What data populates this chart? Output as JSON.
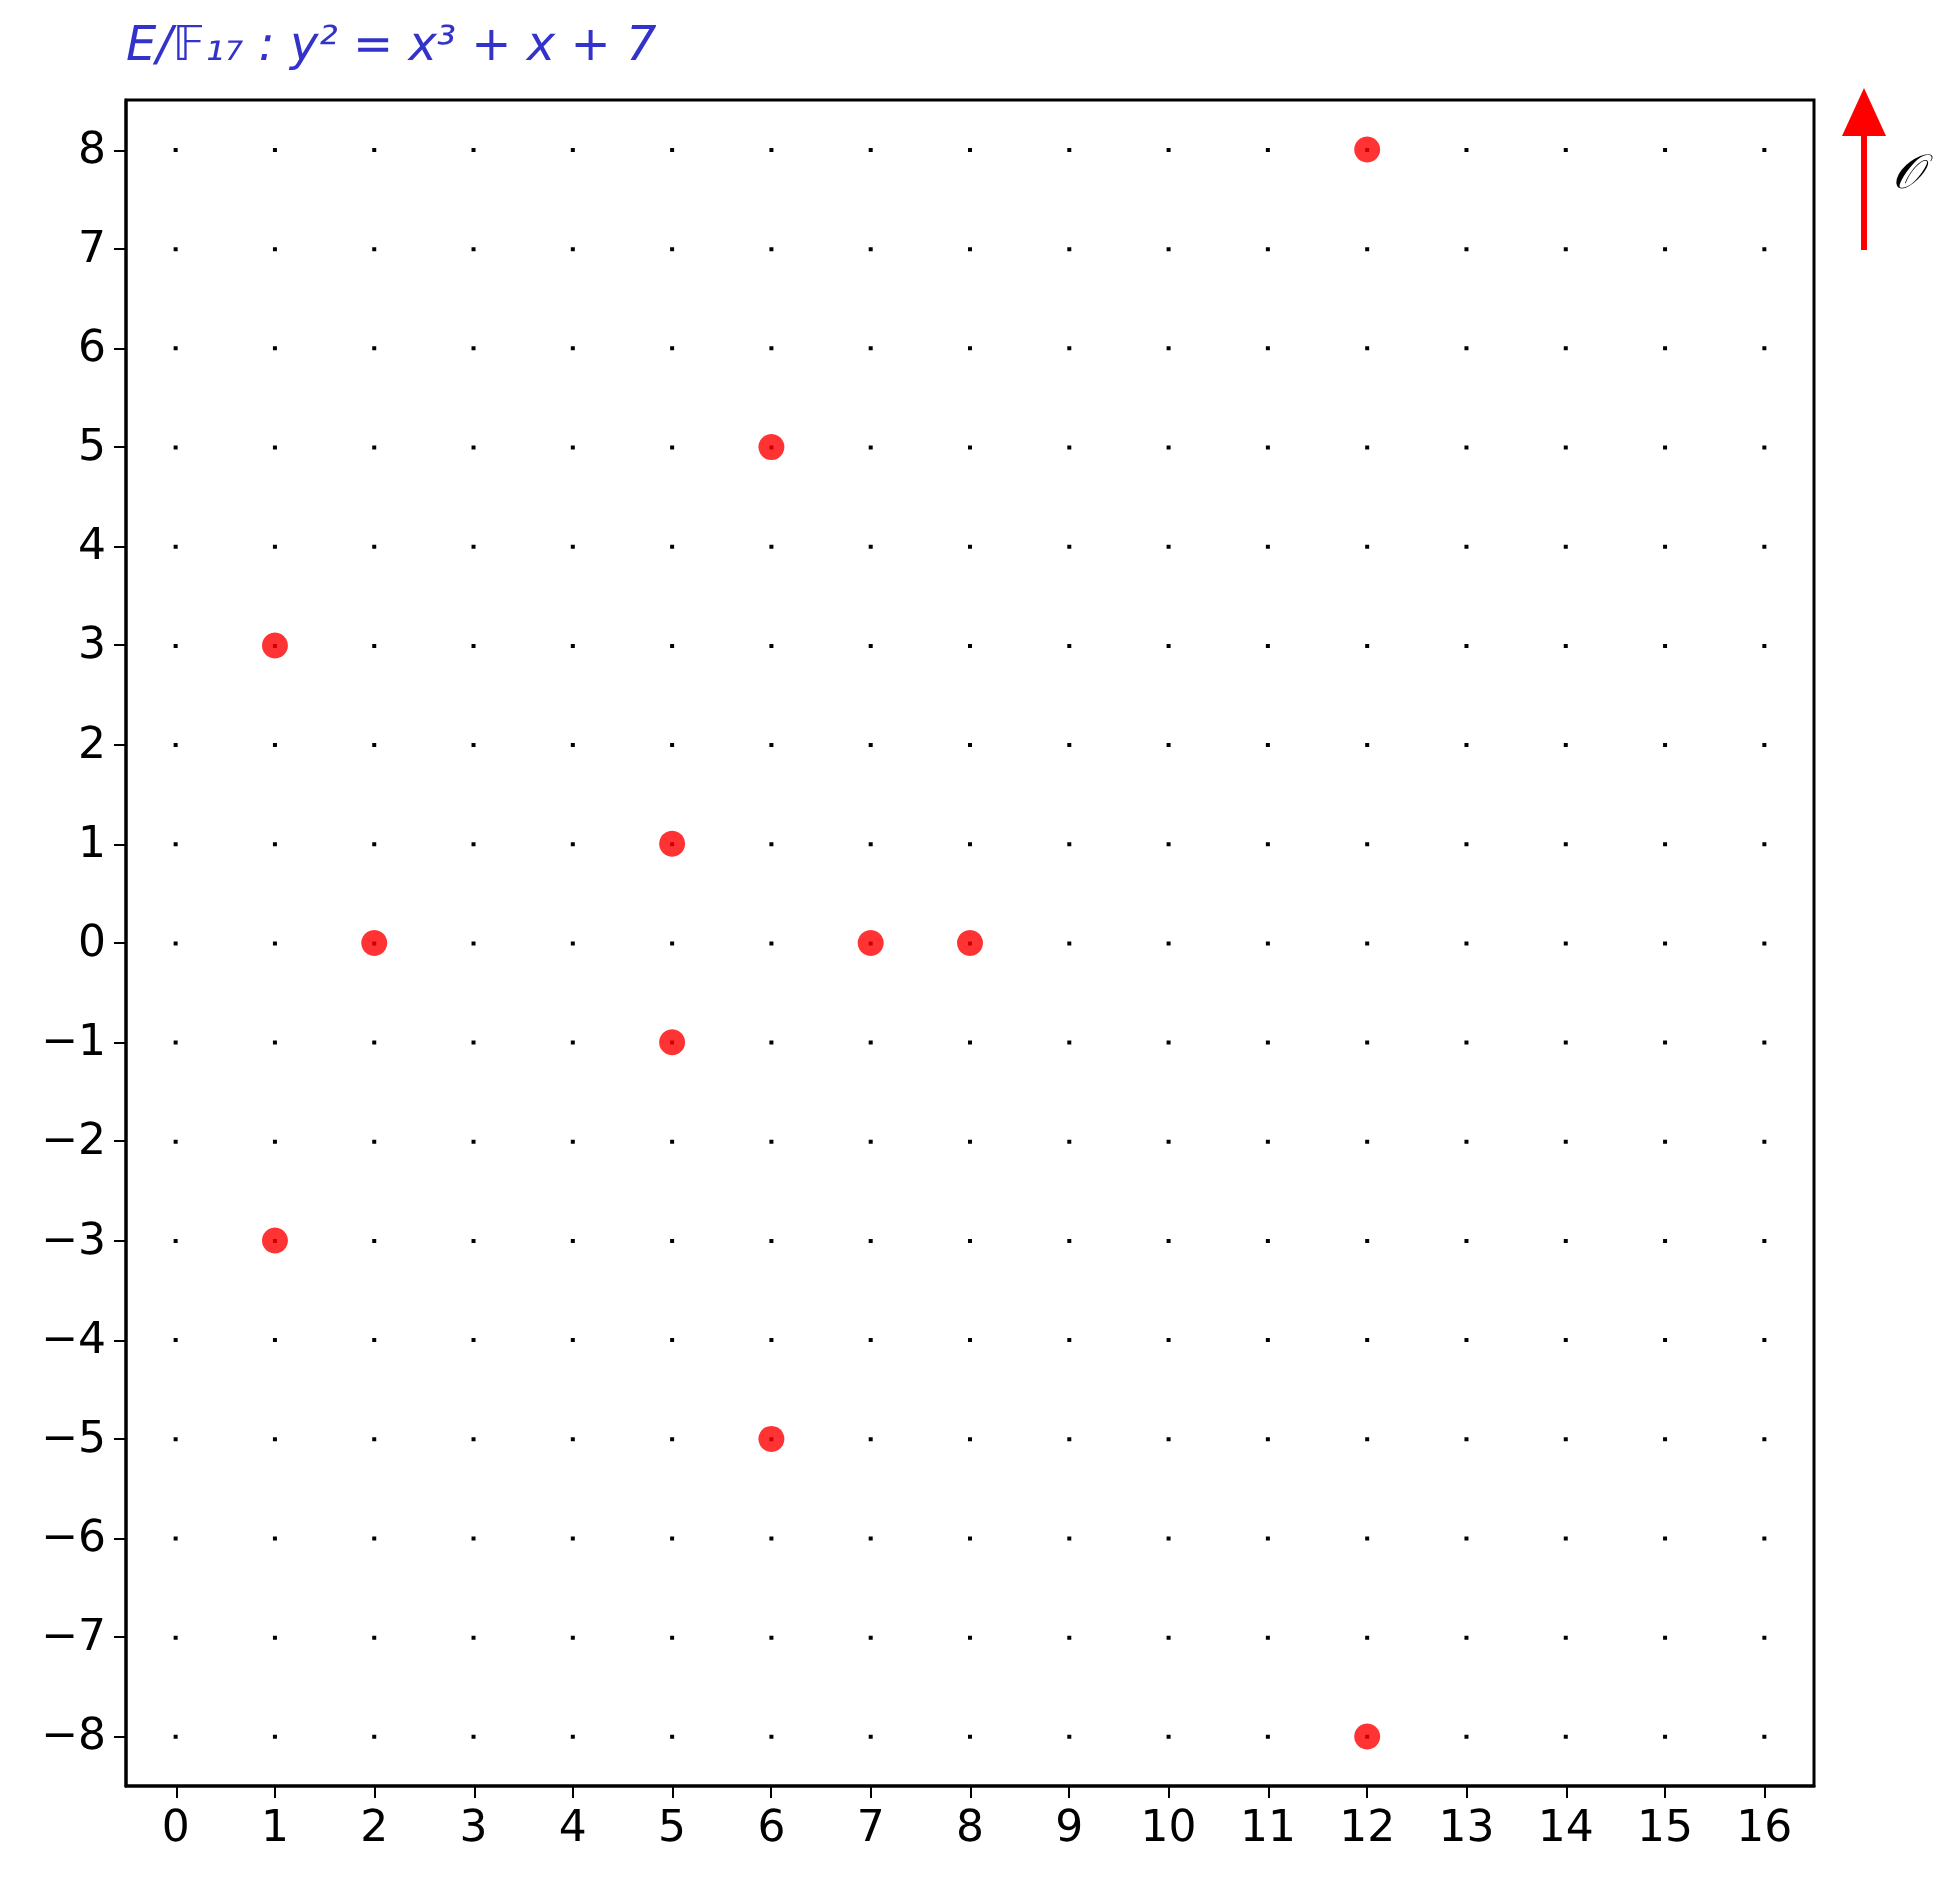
{
  "chart_data": {
    "type": "scatter",
    "title": "E/𝔽₁₇ : y² = x³ + x + 7",
    "series": [
      {
        "color": "#ff0000",
        "x": [
          1,
          1,
          2,
          5,
          5,
          6,
          6,
          7,
          8,
          12,
          12
        ],
        "values": [
          3,
          -3,
          0,
          1,
          -1,
          5,
          -5,
          0,
          0,
          8,
          -8
        ]
      }
    ],
    "xlim": [
      -0.5,
      16.5
    ],
    "xticks": [
      0,
      1,
      2,
      3,
      4,
      5,
      6,
      7,
      8,
      9,
      10,
      11,
      12,
      13,
      14,
      15,
      16
    ],
    "ylim": [
      -8.5,
      8.5
    ],
    "yticks": [
      {
        "value": -8,
        "label": "−8"
      },
      {
        "value": -7,
        "label": "−7"
      },
      {
        "value": -6,
        "label": "−6"
      },
      {
        "value": -5,
        "label": "−5"
      },
      {
        "value": -4,
        "label": "−4"
      },
      {
        "value": -3,
        "label": "−3"
      },
      {
        "value": -2,
        "label": "−2"
      },
      {
        "value": -1,
        "label": "−1"
      },
      0,
      1,
      2,
      3,
      4,
      5,
      6,
      7,
      8
    ],
    "annotations": [
      "𝒪"
    ],
    "grid": true,
    "marker": "circle"
  }
}
